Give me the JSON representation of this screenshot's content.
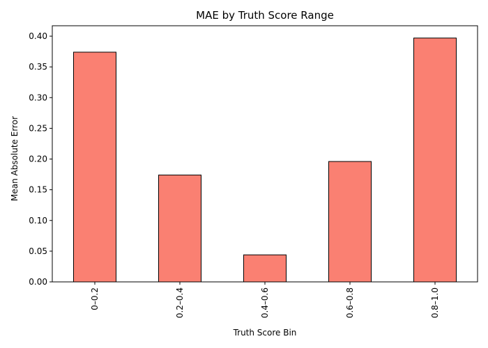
{
  "colors": {
    "bar_fill": "#fa8072",
    "bar_stroke": "#000000",
    "axis": "#000000",
    "background": "#ffffff"
  },
  "chart_data": {
    "type": "bar",
    "title": "MAE by Truth Score Range",
    "xlabel": "Truth Score Bin",
    "ylabel": "Mean Absolute Error",
    "categories": [
      "0–0.2",
      "0.2–0.4",
      "0.4–0.6",
      "0.6–0.8",
      "0.8–1.0"
    ],
    "values": [
      0.374,
      0.174,
      0.044,
      0.196,
      0.397
    ],
    "ylim": [
      0,
      0.417
    ],
    "yticks": [
      "0.00",
      "0.05",
      "0.10",
      "0.15",
      "0.20",
      "0.25",
      "0.30",
      "0.35",
      "0.40"
    ],
    "grid": false,
    "legend": "none",
    "xtick_rotation": "vertical"
  }
}
